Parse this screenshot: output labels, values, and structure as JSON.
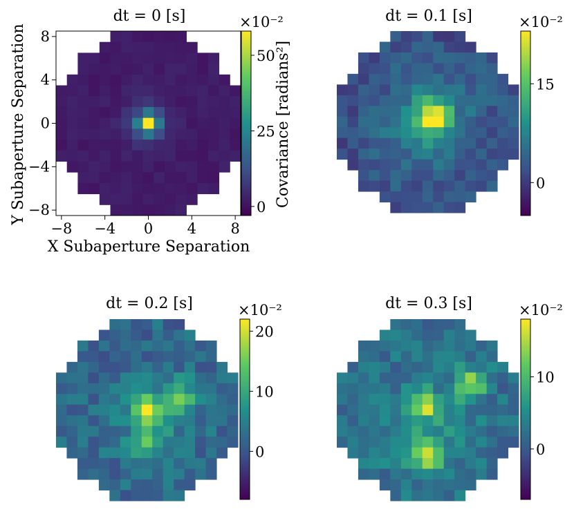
{
  "figure": {
    "axis_labels": {
      "x": "X Subaperture Separation",
      "y": "Y Subaperture Separation",
      "colorbar": "Covariance [radians²]"
    },
    "colorbar_multiplier": "×10⁻²",
    "colormap": "viridis"
  },
  "chart_data": [
    {
      "type": "heatmap",
      "title": "dt = 0 [s]",
      "xlabel": "X Subaperture Separation",
      "ylabel": "Y Subaperture Separation",
      "x_ticks": [
        -8,
        -4,
        0,
        4,
        8
      ],
      "y_ticks": [
        8,
        4,
        0,
        -4,
        -8
      ],
      "xlim": [
        -8.5,
        8.5
      ],
      "ylim": [
        -8.5,
        8.5
      ],
      "grid_size": 17,
      "aperture_radius_cells": 8.6,
      "colorbar_label": "Covariance [radians²]",
      "colorbar_scale": "×10⁻²",
      "colorbar_ticks": [
        0,
        25,
        50
      ],
      "vmin": -3,
      "vmax": 58,
      "background": 2,
      "noise_amplitude": 1.5,
      "peaks": [
        {
          "x": 0,
          "y": 0,
          "amp": 56,
          "sigma": 0.55
        },
        {
          "x": 0,
          "y": 0,
          "amp": 12,
          "sigma": 1.4
        }
      ],
      "show_axes": true
    },
    {
      "type": "heatmap",
      "title": "dt = 0.1 [s]",
      "grid_size": 17,
      "aperture_radius_cells": 8.6,
      "colorbar_scale": "×10⁻²",
      "colorbar_ticks": [
        0,
        15
      ],
      "vmin": -5,
      "vmax": 23,
      "background": 2,
      "noise_amplitude": 2.5,
      "peaks": [
        {
          "x": 0.5,
          "y": 0.5,
          "amp": 18,
          "sigma": 1.1
        },
        {
          "x": 0,
          "y": 0,
          "amp": 6,
          "sigma": 3
        }
      ],
      "show_axes": false
    },
    {
      "type": "heatmap",
      "title": "dt = 0.2 [s]",
      "grid_size": 17,
      "aperture_radius_cells": 8.6,
      "colorbar_scale": "×10⁻²",
      "colorbar_ticks": [
        0,
        10,
        20
      ],
      "vmin": -8,
      "vmax": 22,
      "background": 2,
      "noise_amplitude": 3,
      "peaks": [
        {
          "x": 0,
          "y": 0,
          "amp": 18,
          "sigma": 0.7
        },
        {
          "x": 0,
          "y": -3,
          "amp": 12,
          "sigma": 0.8
        },
        {
          "x": 3,
          "y": 1.5,
          "amp": 10,
          "sigma": 1.1
        },
        {
          "x": 0.5,
          "y": -1,
          "amp": 5,
          "sigma": 2.5
        }
      ],
      "show_axes": false
    },
    {
      "type": "heatmap",
      "title": "dt = 0.3 [s]",
      "grid_size": 17,
      "aperture_radius_cells": 8.6,
      "colorbar_scale": "×10⁻²",
      "colorbar_ticks": [
        0,
        10
      ],
      "vmin": -7,
      "vmax": 18,
      "background": 2,
      "noise_amplitude": 2.5,
      "peaks": [
        {
          "x": 0,
          "y": 0.5,
          "amp": 14,
          "sigma": 0.75
        },
        {
          "x": 0,
          "y": -4.5,
          "amp": 13,
          "sigma": 0.9
        },
        {
          "x": 4,
          "y": 2.5,
          "amp": 12,
          "sigma": 1
        },
        {
          "x": 0,
          "y": -2,
          "amp": 4,
          "sigma": 3
        }
      ],
      "show_axes": false
    }
  ]
}
